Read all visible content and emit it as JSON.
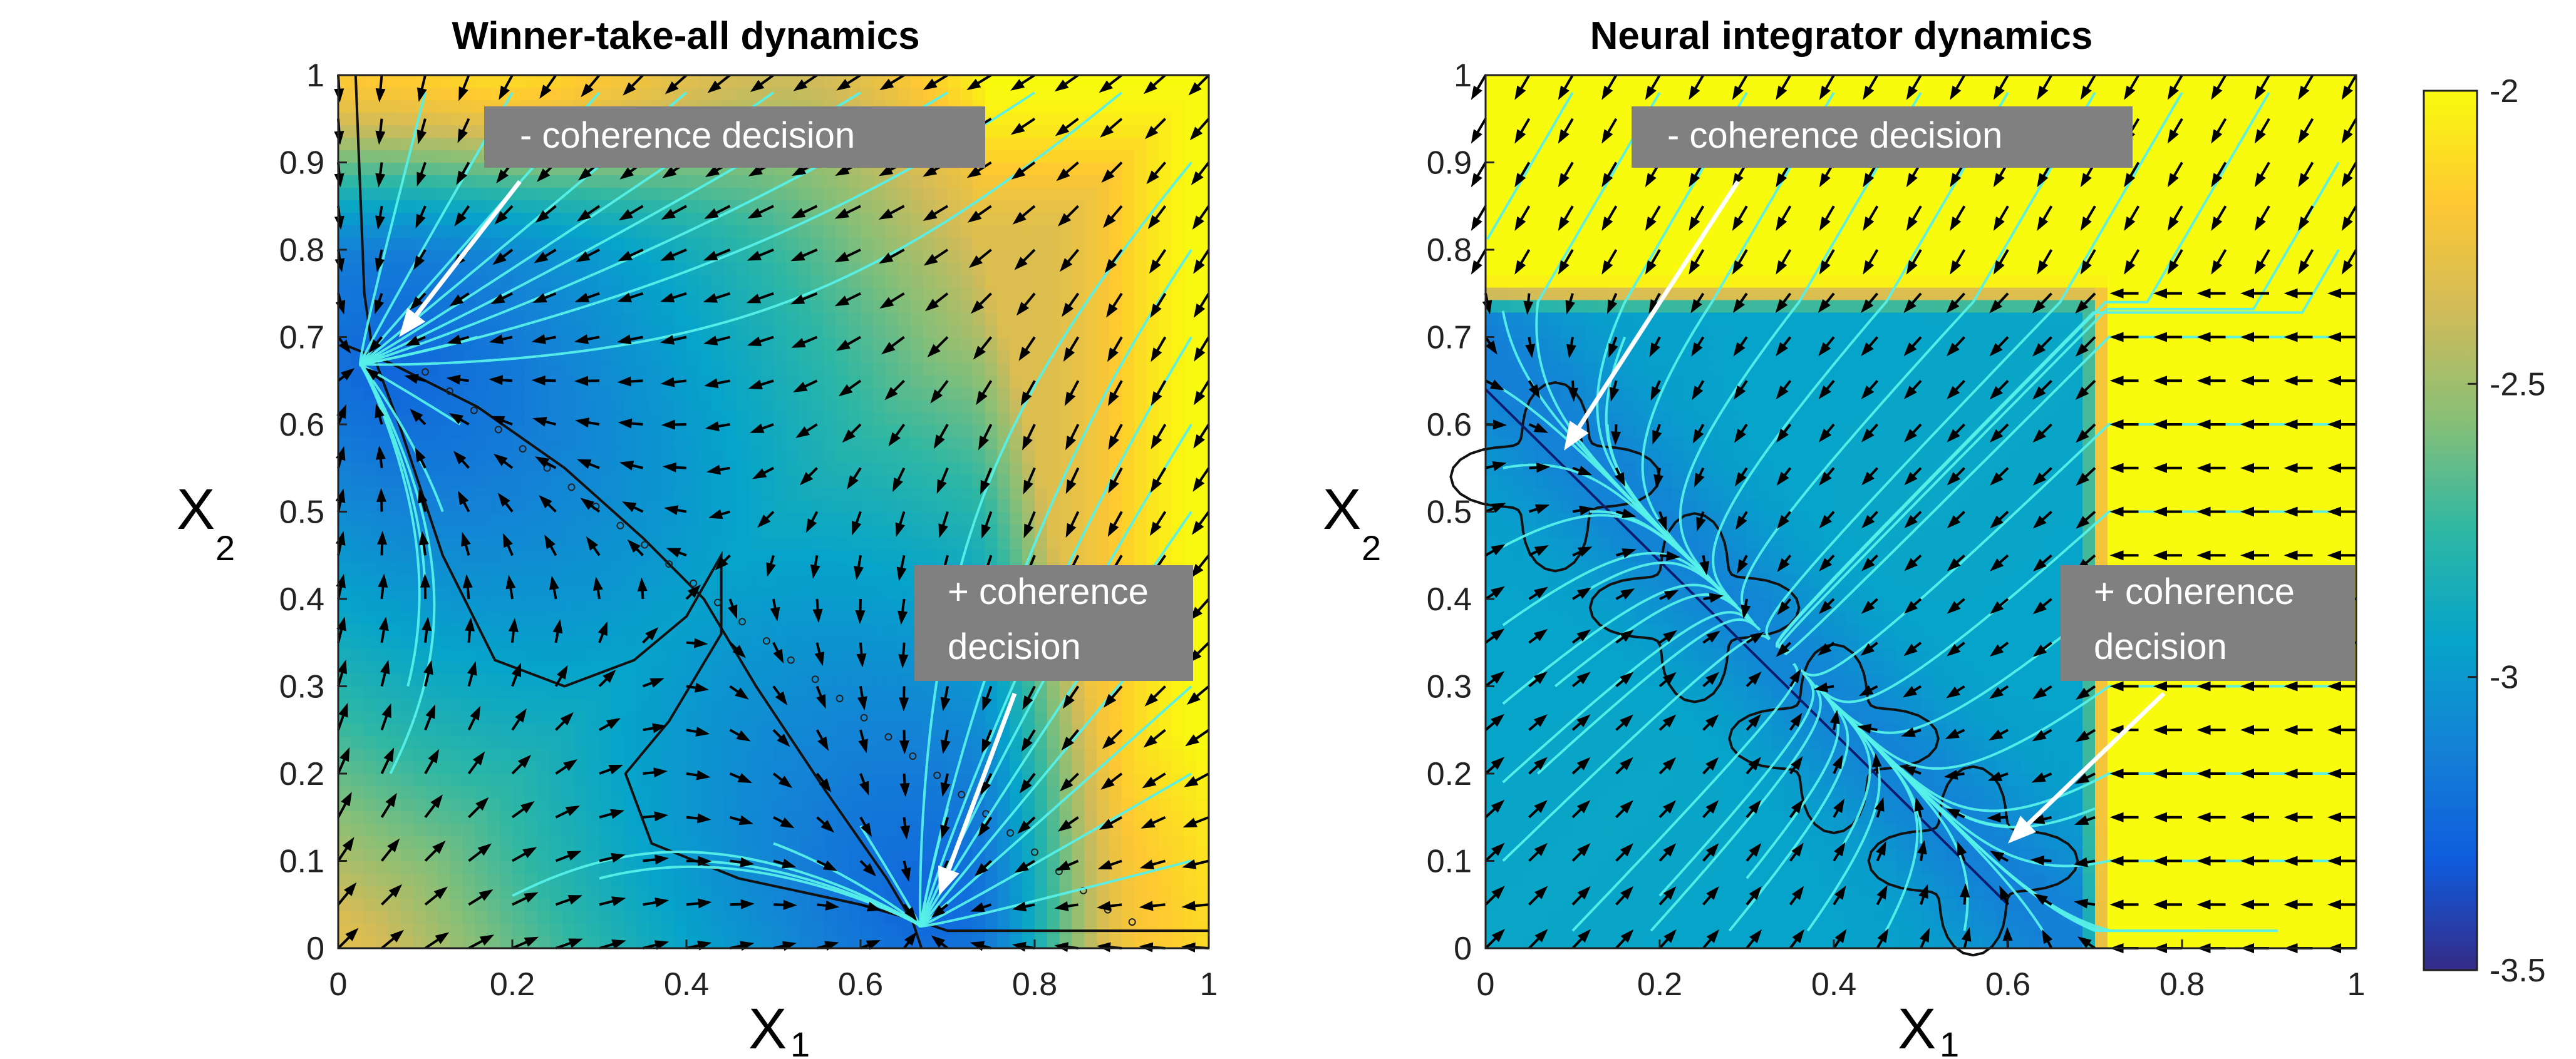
{
  "chart_data": [
    {
      "type": "heatmap",
      "title": "Winner-take-all dynamics",
      "xlabel": "X",
      "xlabel_subscript": "1",
      "ylabel": "X",
      "ylabel_subscript": "2",
      "xlim": [
        0,
        1
      ],
      "ylim": [
        0,
        1
      ],
      "xticks": [
        "0",
        "0.2",
        "0.4",
        "0.6",
        "0.8",
        "1"
      ],
      "yticks": [
        "0",
        "0.1",
        "0.2",
        "0.3",
        "0.4",
        "0.5",
        "0.6",
        "0.7",
        "0.8",
        "0.9",
        "1"
      ],
      "attractors": [
        {
          "x": 0.05,
          "y": 0.66,
          "label": "- coherence decision"
        },
        {
          "x": 0.67,
          "y": 0.04,
          "label": "+ coherence decision"
        }
      ],
      "saddle": {
        "x": 0.42,
        "y": 0.4
      },
      "annotations": [
        {
          "text": "- coherence decision",
          "target_x": 0.07,
          "target_y": 0.7
        },
        {
          "text": "+ coherence",
          "text2": "decision",
          "target_x": 0.69,
          "target_y": 0.06
        }
      ]
    },
    {
      "type": "heatmap",
      "title": "Neural integrator dynamics",
      "xlabel": "X",
      "xlabel_subscript": "1",
      "ylabel": "X",
      "ylabel_subscript": "2",
      "xlim": [
        0,
        1
      ],
      "ylim": [
        0,
        1
      ],
      "xticks": [
        "0",
        "0.2",
        "0.4",
        "0.6",
        "0.8",
        "1"
      ],
      "yticks": [
        "0",
        "0.1",
        "0.2",
        "0.3",
        "0.4",
        "0.5",
        "0.6",
        "0.7",
        "0.8",
        "0.9",
        "1"
      ],
      "line_attractor": [
        [
          0.05,
          0.62
        ],
        [
          0.6,
          0.08
        ]
      ],
      "annotations": [
        {
          "text": "- coherence decision",
          "target_x": 0.09,
          "target_y": 0.57
        },
        {
          "text": "+ coherence",
          "text2": "decision",
          "target_x": 0.6,
          "target_y": 0.12
        }
      ]
    }
  ],
  "colorbar": {
    "ticks": [
      "-2",
      "-2.5",
      "-3",
      "-3.5"
    ],
    "range": [
      -3.5,
      -2
    ],
    "colors": [
      "#352a87",
      "#0f5cdd",
      "#1481d6",
      "#06a4ca",
      "#2eb7a4",
      "#87bf77",
      "#d1bb59",
      "#fec832",
      "#f9fb0e"
    ]
  }
}
